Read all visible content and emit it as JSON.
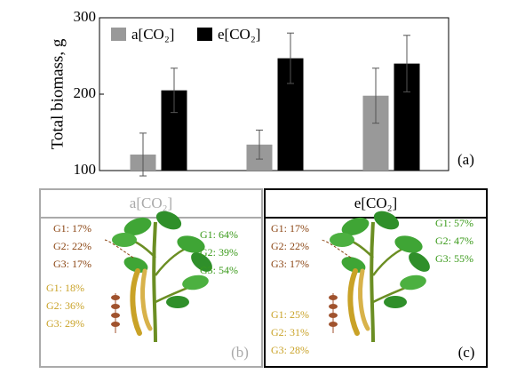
{
  "chart_data": {
    "type": "bar",
    "ylabel": "Total biomass, g",
    "panel_label": "(a)",
    "categories": [
      null,
      null,
      null
    ],
    "series": [
      {
        "name": "a[CO₂]",
        "color": "#999999",
        "values": [
          121,
          134,
          198
        ],
        "errors": [
          28,
          19,
          36
        ]
      },
      {
        "name": "e[CO₂]",
        "color": "#000000",
        "values": [
          205,
          247,
          240
        ],
        "errors": [
          29,
          33,
          37
        ]
      }
    ],
    "ylim": [
      100,
      300
    ],
    "yticks": [
      100,
      200,
      300
    ],
    "grid": false
  },
  "panels": [
    {
      "title": "a[CO₂]",
      "label": "(b)",
      "brown": [
        "G1: 17%",
        "G2: 22%",
        "G3: 17%"
      ],
      "green": [
        "G1: 64%",
        "G2: 39%",
        "G3: 54%"
      ],
      "yellow": [
        "G1: 18%",
        "G2: 36%",
        "G3: 29%"
      ]
    },
    {
      "title": "e[CO₂]",
      "label": "(c)",
      "brown": [
        "G1: 17%",
        "G2: 22%",
        "G3: 17%"
      ],
      "green": [
        "G1: 57%",
        "G2: 47%",
        "G3: 55%"
      ],
      "yellow": [
        "G1: 25%",
        "G2: 31%",
        "G3: 28%"
      ]
    }
  ]
}
